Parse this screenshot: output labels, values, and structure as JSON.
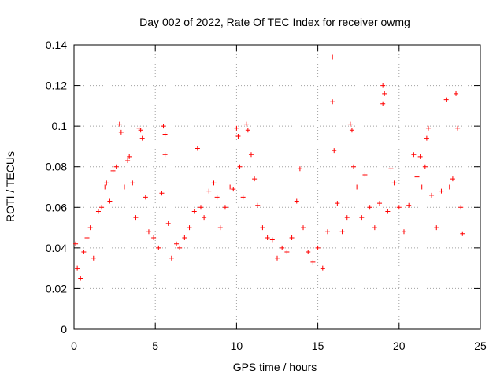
{
  "chart_data": {
    "type": "scatter",
    "title": "Day 002 of 2022, Rate Of TEC Index for receiver owmg",
    "xlabel": "GPS time / hours",
    "ylabel": "ROTI / TECUs",
    "xlim": [
      0,
      25
    ],
    "ylim": [
      0,
      0.14
    ],
    "xticks": [
      0,
      5,
      10,
      15,
      20,
      25
    ],
    "yticks": [
      0,
      0.02,
      0.04,
      0.06,
      0.08,
      0.1,
      0.12,
      0.14
    ],
    "xtick_labels": [
      "0",
      "5",
      "10",
      "15",
      "20",
      "25"
    ],
    "ytick_labels": [
      "0",
      "0.02",
      "0.04",
      "0.06",
      "0.08",
      "0.1",
      "0.12",
      "0.14"
    ],
    "grid": true,
    "marker": "+",
    "color": "#ff0000",
    "series": [
      {
        "points": [
          [
            0.1,
            0.042
          ],
          [
            0.2,
            0.03
          ],
          [
            0.4,
            0.025
          ],
          [
            0.6,
            0.038
          ],
          [
            0.8,
            0.045
          ],
          [
            1.0,
            0.05
          ],
          [
            1.2,
            0.035
          ],
          [
            1.5,
            0.058
          ],
          [
            1.7,
            0.06
          ],
          [
            1.9,
            0.07
          ],
          [
            2.0,
            0.072
          ],
          [
            2.2,
            0.063
          ],
          [
            2.4,
            0.078
          ],
          [
            2.6,
            0.08
          ],
          [
            2.8,
            0.101
          ],
          [
            2.9,
            0.097
          ],
          [
            3.1,
            0.07
          ],
          [
            3.3,
            0.083
          ],
          [
            3.4,
            0.085
          ],
          [
            3.6,
            0.072
          ],
          [
            3.8,
            0.055
          ],
          [
            4.0,
            0.099
          ],
          [
            4.1,
            0.098
          ],
          [
            4.2,
            0.094
          ],
          [
            4.4,
            0.065
          ],
          [
            4.6,
            0.048
          ],
          [
            4.9,
            0.045
          ],
          [
            5.2,
            0.04
          ],
          [
            5.4,
            0.067
          ],
          [
            5.5,
            0.1
          ],
          [
            5.6,
            0.096
          ],
          [
            5.6,
            0.086
          ],
          [
            5.8,
            0.052
          ],
          [
            6.0,
            0.035
          ],
          [
            6.3,
            0.042
          ],
          [
            6.5,
            0.04
          ],
          [
            6.8,
            0.045
          ],
          [
            7.1,
            0.05
          ],
          [
            7.4,
            0.058
          ],
          [
            7.6,
            0.089
          ],
          [
            7.8,
            0.06
          ],
          [
            8.0,
            0.055
          ],
          [
            8.3,
            0.068
          ],
          [
            8.6,
            0.072
          ],
          [
            8.8,
            0.065
          ],
          [
            9.0,
            0.05
          ],
          [
            9.3,
            0.06
          ],
          [
            9.6,
            0.07
          ],
          [
            9.8,
            0.069
          ],
          [
            10.0,
            0.099
          ],
          [
            10.1,
            0.095
          ],
          [
            10.2,
            0.08
          ],
          [
            10.4,
            0.065
          ],
          [
            10.6,
            0.101
          ],
          [
            10.7,
            0.098
          ],
          [
            10.9,
            0.086
          ],
          [
            11.1,
            0.074
          ],
          [
            11.3,
            0.061
          ],
          [
            11.6,
            0.05
          ],
          [
            11.9,
            0.045
          ],
          [
            12.2,
            0.044
          ],
          [
            12.5,
            0.035
          ],
          [
            12.8,
            0.04
          ],
          [
            13.1,
            0.038
          ],
          [
            13.4,
            0.045
          ],
          [
            13.7,
            0.063
          ],
          [
            13.9,
            0.079
          ],
          [
            14.1,
            0.05
          ],
          [
            14.4,
            0.038
          ],
          [
            14.7,
            0.033
          ],
          [
            15.0,
            0.04
          ],
          [
            15.3,
            0.03
          ],
          [
            15.6,
            0.048
          ],
          [
            15.9,
            0.134
          ],
          [
            15.9,
            0.112
          ],
          [
            16.0,
            0.088
          ],
          [
            16.2,
            0.062
          ],
          [
            16.5,
            0.048
          ],
          [
            16.8,
            0.055
          ],
          [
            17.0,
            0.101
          ],
          [
            17.1,
            0.098
          ],
          [
            17.2,
            0.08
          ],
          [
            17.4,
            0.07
          ],
          [
            17.7,
            0.055
          ],
          [
            17.9,
            0.076
          ],
          [
            18.2,
            0.06
          ],
          [
            18.5,
            0.05
          ],
          [
            18.8,
            0.062
          ],
          [
            19.0,
            0.12
          ],
          [
            19.0,
            0.111
          ],
          [
            19.1,
            0.116
          ],
          [
            19.3,
            0.058
          ],
          [
            19.5,
            0.079
          ],
          [
            19.7,
            0.072
          ],
          [
            20.0,
            0.06
          ],
          [
            20.3,
            0.048
          ],
          [
            20.6,
            0.061
          ],
          [
            20.9,
            0.086
          ],
          [
            21.1,
            0.075
          ],
          [
            21.3,
            0.085
          ],
          [
            21.4,
            0.07
          ],
          [
            21.6,
            0.08
          ],
          [
            21.7,
            0.094
          ],
          [
            21.8,
            0.099
          ],
          [
            22.0,
            0.066
          ],
          [
            22.3,
            0.05
          ],
          [
            22.6,
            0.068
          ],
          [
            22.9,
            0.113
          ],
          [
            23.1,
            0.07
          ],
          [
            23.3,
            0.074
          ],
          [
            23.5,
            0.116
          ],
          [
            23.6,
            0.099
          ],
          [
            23.8,
            0.06
          ],
          [
            23.9,
            0.047
          ]
        ]
      }
    ]
  }
}
